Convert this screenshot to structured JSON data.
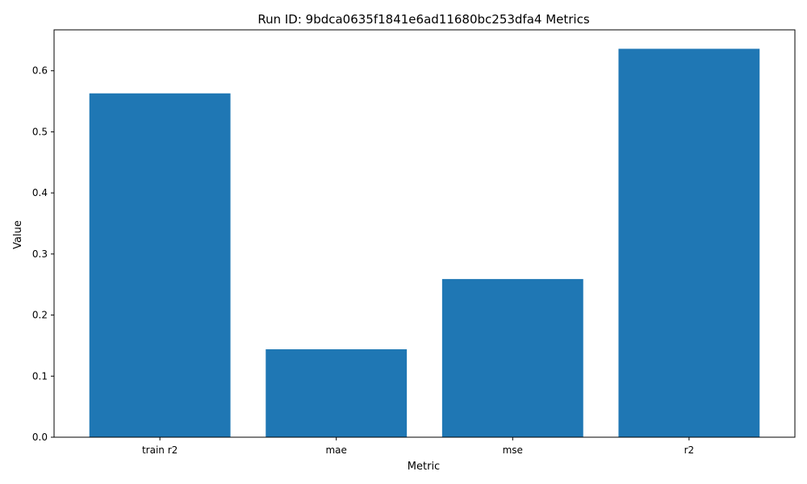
{
  "chart_data": {
    "type": "bar",
    "title": "Run ID: 9bdca0635f1841e6ad11680bc253dfa4 Metrics",
    "xlabel": "Metric",
    "ylabel": "Value",
    "categories": [
      "train r2",
      "mae",
      "mse",
      "r2"
    ],
    "values": [
      0.563,
      0.144,
      0.259,
      0.636
    ],
    "ylim": [
      0,
      0.667
    ],
    "yticks": [
      0.0,
      0.1,
      0.2,
      0.3,
      0.4,
      0.5,
      0.6
    ],
    "ytick_labels": [
      "0.0",
      "0.1",
      "0.2",
      "0.3",
      "0.4",
      "0.5",
      "0.6"
    ],
    "bar_color": "#1f77b4",
    "grid": false,
    "legend": "none"
  }
}
